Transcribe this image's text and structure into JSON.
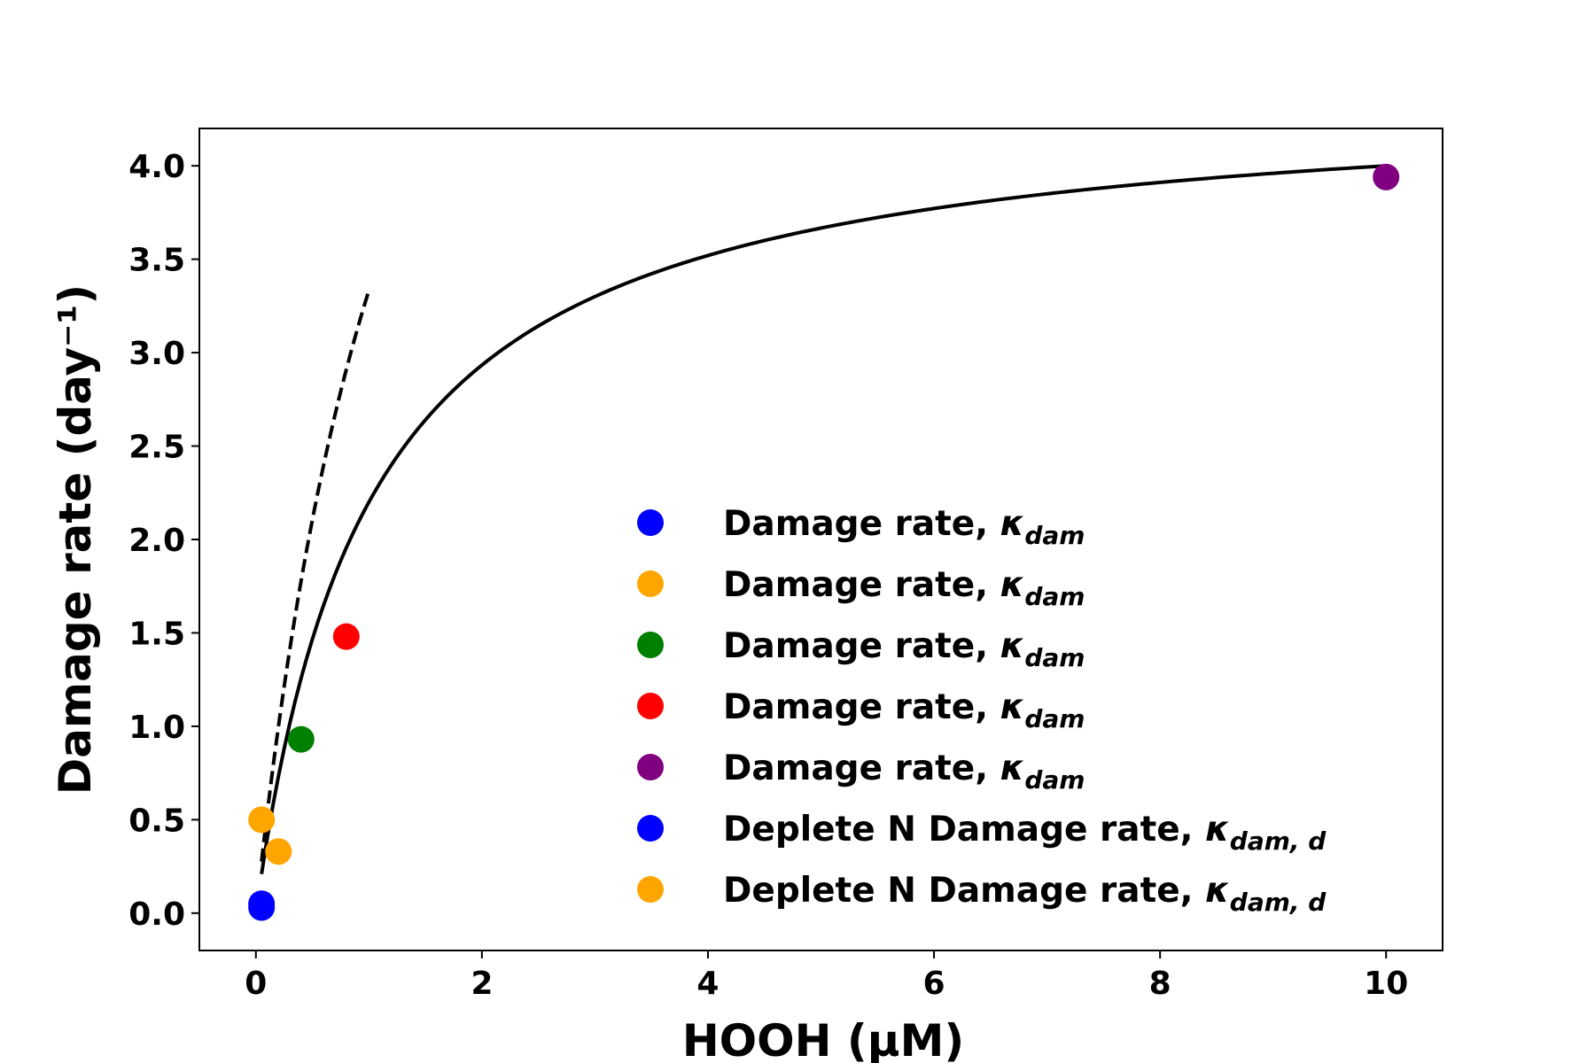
{
  "chart_data": {
    "type": "scatter",
    "xlabel": "HOOH (μM)",
    "ylabel": "Damage rate (day⁻¹)",
    "xlim": [
      -0.5,
      10.5
    ],
    "ylim": [
      -0.2,
      4.2
    ],
    "xticks": [
      {
        "value": 0,
        "label": "0"
      },
      {
        "value": 2,
        "label": "2"
      },
      {
        "value": 4,
        "label": "4"
      },
      {
        "value": 6,
        "label": "6"
      },
      {
        "value": 8,
        "label": "8"
      },
      {
        "value": 10,
        "label": "10"
      }
    ],
    "yticks": [
      {
        "value": 0.0,
        "label": "0.0"
      },
      {
        "value": 0.5,
        "label": "0.5"
      },
      {
        "value": 1.0,
        "label": "1.0"
      },
      {
        "value": 1.5,
        "label": "1.5"
      },
      {
        "value": 2.0,
        "label": "2.0"
      },
      {
        "value": 2.5,
        "label": "2.5"
      },
      {
        "value": 3.0,
        "label": "3.0"
      },
      {
        "value": 3.5,
        "label": "3.5"
      },
      {
        "value": 4.0,
        "label": "4.0"
      }
    ],
    "grid": false,
    "legend_position": "lower-right",
    "points": [
      {
        "x": 0.05,
        "y": 0.03,
        "color": "#0000ff",
        "series": 0
      },
      {
        "x": 0.05,
        "y": 0.05,
        "color": "#0000ff",
        "series": 5
      },
      {
        "x": 0.05,
        "y": 0.5,
        "color": "#ffa500",
        "series": 1
      },
      {
        "x": 0.2,
        "y": 0.33,
        "color": "#ffa500",
        "series": 6
      },
      {
        "x": 0.4,
        "y": 0.93,
        "color": "#008000",
        "series": 2
      },
      {
        "x": 0.8,
        "y": 1.48,
        "color": "#ff0000",
        "series": 3
      },
      {
        "x": 10.0,
        "y": 3.94,
        "color": "#800080",
        "series": 4
      }
    ],
    "curves": [
      {
        "style": "solid",
        "color": "#000000",
        "vmax": 4.4,
        "k": 1.0,
        "x_range": [
          0.05,
          10.0
        ]
      },
      {
        "style": "dashed",
        "color": "#000000",
        "vmax": 8.0,
        "k": 1.4,
        "x_range": [
          0.05,
          1.0
        ]
      }
    ],
    "legend": [
      {
        "label": "Damage rate, ",
        "symbol": "κ",
        "subscript": "dam",
        "color": "#0000ff"
      },
      {
        "label": "Damage rate, ",
        "symbol": "κ",
        "subscript": "dam",
        "color": "#ffa500"
      },
      {
        "label": "Damage rate, ",
        "symbol": "κ",
        "subscript": "dam",
        "color": "#008000"
      },
      {
        "label": "Damage rate, ",
        "symbol": "κ",
        "subscript": "dam",
        "color": "#ff0000"
      },
      {
        "label": "Damage rate, ",
        "symbol": "κ",
        "subscript": "dam",
        "color": "#800080"
      },
      {
        "label": "Deplete N Damage rate, ",
        "symbol": "κ",
        "subscript": "dam, d",
        "color": "#0000ff"
      },
      {
        "label": "Deplete N Damage rate, ",
        "symbol": "κ",
        "subscript": "dam, d",
        "color": "#ffa500"
      }
    ]
  }
}
